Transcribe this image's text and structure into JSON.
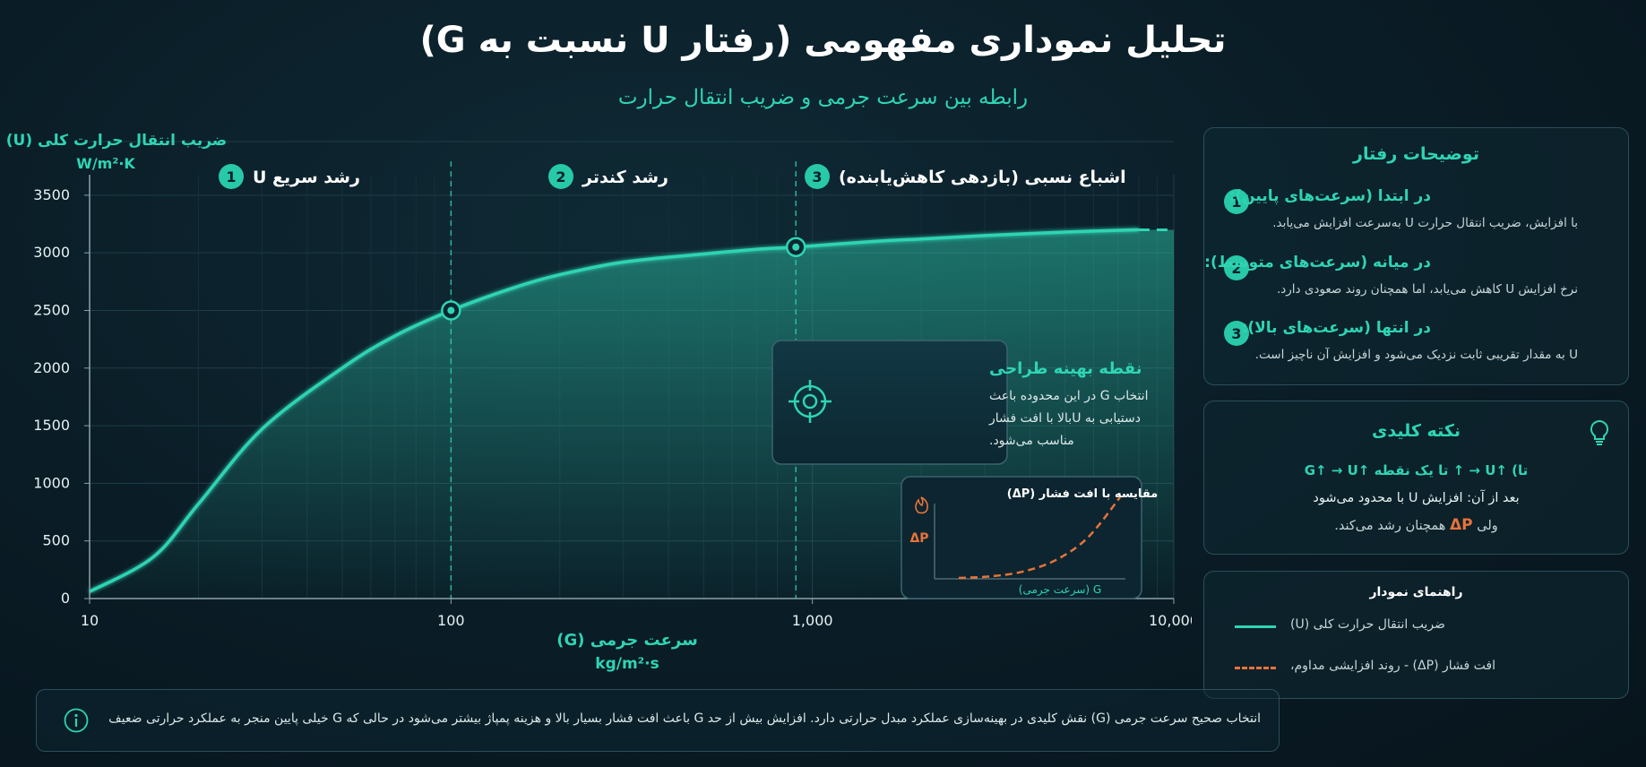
{
  "header": {
    "title": "تحلیل نموداری مفهومی (رفتار U نسبت به G)",
    "subtitle": "رابطه بین سرعت جرمی و ضریب انتقال حرارت"
  },
  "chart_data": {
    "type": "line",
    "xlabel": "سرعت جرمی (G)",
    "xunit": "kg/m²·s",
    "ylabel": "ضریب انتقال حرارت کلی (U)",
    "yunit": "W/m²·K",
    "xscale": "log",
    "xlim": [
      10,
      10000
    ],
    "ylim": [
      0,
      3600
    ],
    "xticks": [
      10,
      100,
      1000,
      10000
    ],
    "xtick_labels": [
      "10",
      "100",
      "1,000",
      "10,000"
    ],
    "yticks": [
      0,
      500,
      1000,
      1500,
      2000,
      2500,
      3000,
      3500
    ],
    "grid": true,
    "series": [
      {
        "name": "ضریب انتقال حرارت کلی (U)",
        "color": "#2fd4b4",
        "x": [
          10,
          15,
          20,
          30,
          50,
          70,
          100,
          150,
          200,
          300,
          500,
          700,
          900,
          1500,
          2000,
          3000,
          5000,
          8000
        ],
        "y": [
          60,
          360,
          820,
          1470,
          2000,
          2280,
          2500,
          2700,
          2810,
          2920,
          2990,
          3030,
          3050,
          3100,
          3120,
          3150,
          3180,
          3200
        ]
      }
    ],
    "projection": {
      "x": [
        8000,
        10000
      ],
      "y": [
        3200,
        3200
      ]
    },
    "markers": [
      {
        "x": 100,
        "y": 2500
      },
      {
        "x": 900,
        "y": 3050
      }
    ],
    "region_dividers": [
      100,
      900
    ],
    "regions": [
      {
        "num": "1",
        "label": "رشد سریع U"
      },
      {
        "num": "2",
        "label": "رشد کندتر"
      },
      {
        "num": "3",
        "label": "اشباع نسبی (بازدهی کاهش‌یابنده)"
      }
    ],
    "annotation": {
      "title": "نقطه بهینه طراحی",
      "lines": [
        "انتخاب G در این محدوده باعث",
        "دستیابی به Uبالا با افت فشار",
        "مناسب می‌شود."
      ]
    },
    "inset": {
      "title": "مقایسه با افت فشار (ΔP)",
      "ylabel": "ΔP",
      "xlabel": "G (سرعت جرمی)",
      "color": "#e8733a",
      "x": [
        0,
        0.2,
        0.4,
        0.6,
        0.8,
        1.0
      ],
      "y": [
        0.0,
        0.02,
        0.08,
        0.22,
        0.5,
        1.0
      ]
    }
  },
  "behavior": {
    "title": "توضیحات رفتار",
    "items": [
      {
        "num": "1",
        "head": "در ابتدا (سرعت‌های پایین):",
        "desc": "با افزایش، ضریب انتقال حرارت U به‌سرعت افزایش می‌یابد."
      },
      {
        "num": "2",
        "head": "در میانه (سرعت‌های متوسط):",
        "desc": "نرخ افزایش U کاهش می‌یابد، اما همچنان روند صعودی دارد."
      },
      {
        "num": "3",
        "head": "در انتها (سرعت‌های بالا):",
        "desc": "U به مقدار تقریبی ثابت نزدیک می‌شود و افزایش آن ناچیز است."
      }
    ]
  },
  "keynote": {
    "title": "نکته کلیدی",
    "formula": "G↑ → U↑ تا یک نقطه ↑ → U↑ (تا",
    "line2": "بعد از آن: افزایش U با محدود می‌شود",
    "line3_prefix": "ولی",
    "line3_delta": "ΔP",
    "line3_suffix": "همچنان رشد می‌کند."
  },
  "legend": {
    "title": "راهنمای نمودار",
    "items": [
      {
        "label": "ضریب انتقال حرارت کلی (U)",
        "color": "#2fd4b4",
        "style": "solid"
      },
      {
        "label": "افت فشار (ΔP) - روند افزایشی مداوم،",
        "color": "#e8733a",
        "style": "dashed"
      }
    ]
  },
  "footer": {
    "text": "انتخاب صحیح سرعت جرمی (G) نقش کلیدی در بهینه‌سازی عملکرد مبدل حرارتی دارد. افزایش بیش از حد G باعث افت فشار بسیار بالا و هزینه پمپاژ بیشتر می‌شود در حالی که G خیلی پایین منجر به عملکرد حرارتی ضعیف خواهد شد."
  }
}
